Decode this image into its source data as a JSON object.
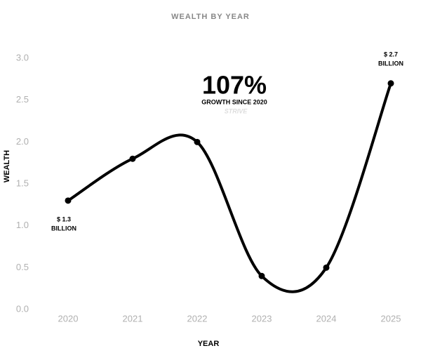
{
  "chart_data": {
    "type": "line",
    "title": "WEALTH BY YEAR",
    "x_label": "YEAR",
    "y_label": "WEALTH",
    "categories": [
      "2020",
      "2021",
      "2022",
      "2023",
      "2024",
      "2025"
    ],
    "series": [
      {
        "name": "Wealth",
        "color": "#000000",
        "values": [
          1.3,
          1.8,
          2.0,
          0.4,
          0.5,
          2.7
        ]
      }
    ],
    "ylim": [
      0,
      3
    ],
    "yticks": [
      {
        "value": 0,
        "label": "0.0"
      },
      0.5,
      {
        "value": 1,
        "label": "1.0"
      },
      1.5,
      {
        "value": 2,
        "label": "2.0"
      },
      2.5,
      {
        "value": 3,
        "label": "3.0"
      }
    ],
    "smooth": true,
    "annotations": [
      [
        "$ 1.3",
        "BILLION"
      ],
      [
        "$ 2.7",
        "BILLION"
      ]
    ],
    "headline": "107%",
    "headline_caption": "GROWTH SINCE 2020",
    "watermark": "STRIVE"
  }
}
